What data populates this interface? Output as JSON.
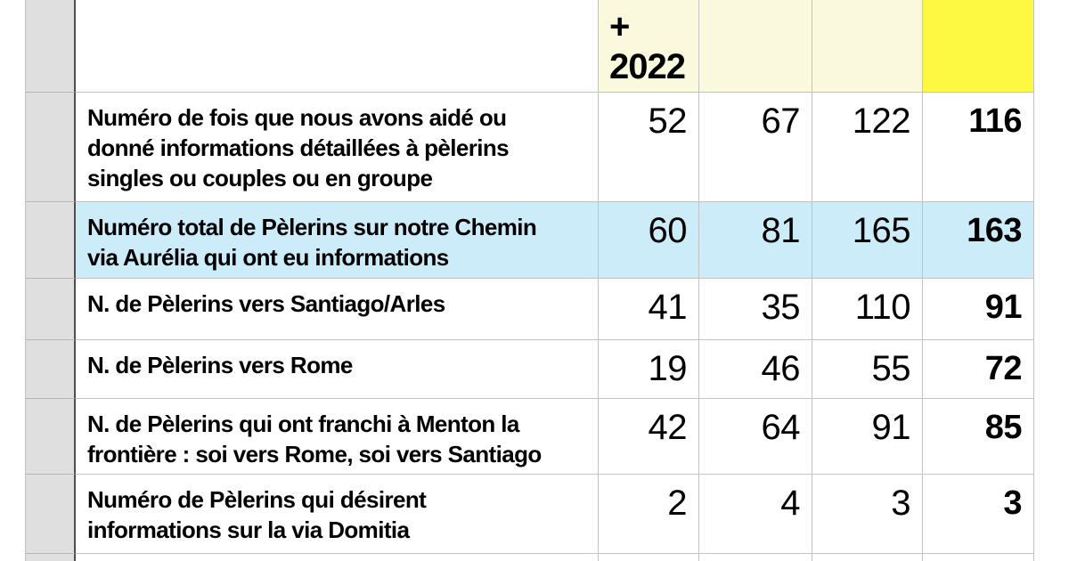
{
  "header": {
    "row_gutter_label": "",
    "label_column_header": "",
    "year_column_label": "+\n2022",
    "col2_label": "",
    "col3_label": "",
    "total_column_label": ""
  },
  "rows": [
    {
      "label": "Numéro de fois que nous avons aidé ou\ndonné informations détaillées à pèlerins\nsingles ou couples ou en groupe",
      "values": [
        "52",
        "67",
        "122",
        "116"
      ],
      "highlight": "none"
    },
    {
      "label": "Numéro total de Pèlerins sur notre Chemin\nvia Aurélia qui ont eu informations",
      "values": [
        "60",
        "81",
        "165",
        "163"
      ],
      "highlight": "blue"
    },
    {
      "label": "N. de Pèlerins vers Santiago/Arles",
      "values": [
        "41",
        "35",
        "110",
        "91"
      ],
      "highlight": "none"
    },
    {
      "label": "N. de Pèlerins vers Rome",
      "values": [
        "19",
        "46",
        "55",
        "72"
      ],
      "highlight": "none"
    },
    {
      "label": "N. de Pèlerins qui ont franchi à Menton la\nfrontière : soi vers Rome, soi vers Santiago",
      "values": [
        "42",
        "64",
        "91",
        "85"
      ],
      "highlight": "none"
    },
    {
      "label": "Numéro de Pèlerins qui désirent\ninformations sur la via Domitia",
      "values": [
        "2",
        "4",
        "3",
        "3"
      ],
      "highlight": "none"
    }
  ],
  "colors": {
    "header_bg": "#fbf9dd",
    "total_col_bg": "#fdf942",
    "highlight_row_bg": "#cdecfa",
    "gutter_bg": "#dfdfdf",
    "grid_color": "#c2c2c2",
    "dark_line_color": "#4e4e4e"
  }
}
